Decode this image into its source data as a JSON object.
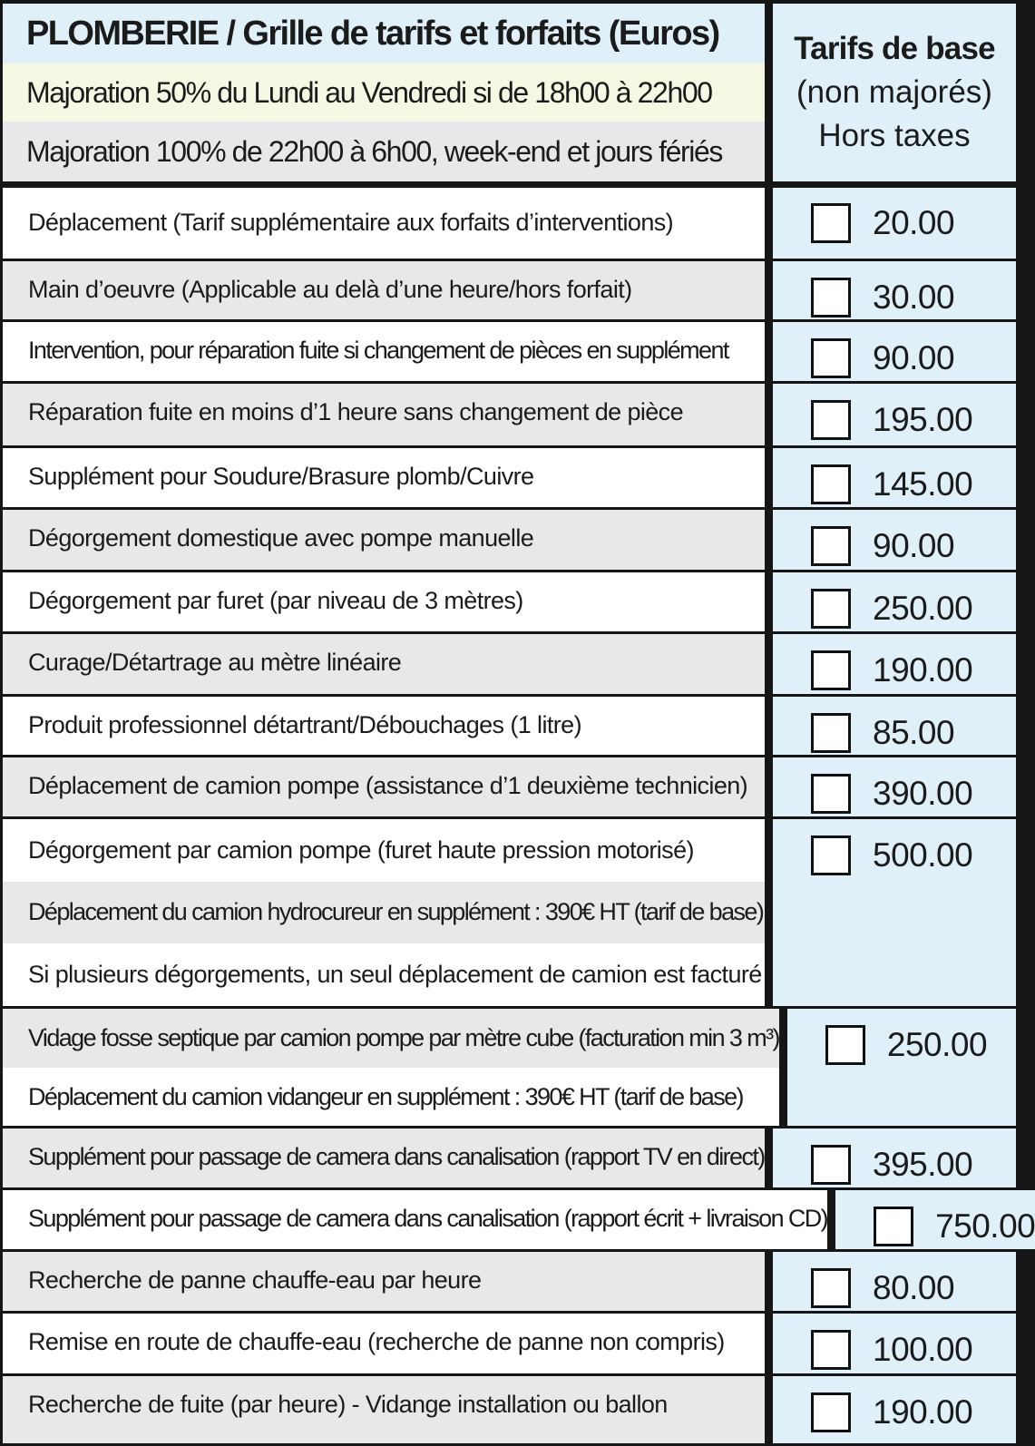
{
  "header": {
    "title": "PLOMBERIE / Grille de tarifs et forfaits (Euros)",
    "surcharge_evening": "Majoration 50% du Lundi au Vendredi si de 18h00 à 22h00",
    "surcharge_night": "Majoration 100% de 22h00 à 6h00, week-end et jours fériés",
    "price_col_line1": "Tarifs de base",
    "price_col_line2": "(non majorés)",
    "price_col_line3": "Hors taxes"
  },
  "colors": {
    "header_blue": "#dff0f8",
    "row_gray": "#e8e8ea",
    "majoration_yellow": "#f7f8e4",
    "border": "#161616"
  },
  "items": [
    {
      "label": "Déplacement (Tarif supplémentaire aux forfaits d’interventions)",
      "price": "20.00",
      "checked": false
    },
    {
      "label": "Main d’oeuvre (Applicable au delà d’une heure/hors forfait)",
      "price": "30.00",
      "checked": false
    },
    {
      "label": "Intervention, pour réparation fuite si changement de pièces en supplément",
      "price": "90.00",
      "checked": false
    },
    {
      "label": "Réparation fuite en moins d’1 heure sans changement de pièce",
      "price": "195.00",
      "checked": false
    },
    {
      "label": "Supplément pour Soudure/Brasure plomb/Cuivre",
      "price": "145.00",
      "checked": false
    },
    {
      "label": "Dégorgement domestique avec pompe manuelle",
      "price": "90.00",
      "checked": false
    },
    {
      "label": "Dégorgement par furet (par niveau de 3 mètres)",
      "price": "250.00",
      "checked": false
    },
    {
      "label": "Curage/Détartrage au mètre linéaire",
      "price": "190.00",
      "checked": false
    },
    {
      "label": "Produit professionnel détartrant/Débouchages (1 litre)",
      "price": "85.00",
      "checked": false
    },
    {
      "label": "Déplacement de camion pompe (assistance d’1 deuxième technicien)",
      "price": "390.00",
      "checked": false
    },
    {
      "label": "Dégorgement par camion pompe (furet haute pression motorisé)",
      "note1": "Déplacement du camion hydrocureur en supplément : 390€ HT (tarif de base)",
      "note2": "Si plusieurs dégorgements, un seul déplacement de camion est facturé",
      "price": "500.00",
      "checked": false
    },
    {
      "label": "Vidage fosse septique par camion pompe par mètre cube (facturation min 3 m³)",
      "note1": "Déplacement du camion vidangeur en supplément : 390€ HT (tarif de base)",
      "price": "250.00",
      "checked": false
    },
    {
      "label": "Supplément pour passage de camera  dans canalisation (rapport TV en direct)",
      "price": "395.00",
      "checked": false
    },
    {
      "label": "Supplément pour passage de camera  dans canalisation (rapport écrit + livraison CD)",
      "price": "750.00",
      "checked": false
    },
    {
      "label": "Recherche de panne chauffe-eau par heure",
      "price": "80.00",
      "checked": false
    },
    {
      "label": "Remise en route de chauffe-eau (recherche de panne non compris)",
      "price": "100.00",
      "checked": false
    },
    {
      "label": "Recherche de fuite (par heure) - Vidange installation ou ballon",
      "price": "190.00",
      "checked": false
    }
  ]
}
